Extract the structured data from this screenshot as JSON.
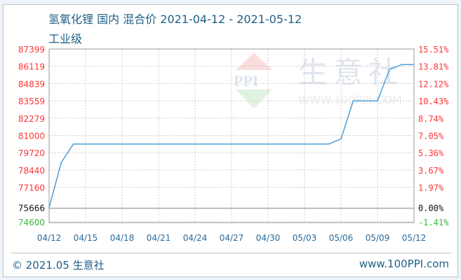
{
  "header": {
    "title": "氢氧化锂 国内 混合价 2021-04-12 - 2021-05-12",
    "subtitle": "工业级"
  },
  "footer": {
    "copyright": "© 2021.05 生意社",
    "site": "www.100PPI.com"
  },
  "watermark": {
    "logo": "PPI",
    "name": "生意社",
    "url": "WWW.100PPI.COM"
  },
  "colors": {
    "line": "#4a9fdc",
    "up": "#ff3333",
    "base": "#111111",
    "down": "#33bb33",
    "axis_x": "#2a6a9a",
    "grid": "#cccccc"
  },
  "chart_data": {
    "type": "line",
    "title": "氢氧化锂 国内 混合价 2021-04-12 - 2021-05-12",
    "subtitle": "工业级",
    "xlim": [
      "2021-04-12",
      "2021-05-12"
    ],
    "ylim": [
      74600,
      87399
    ],
    "grid": true,
    "x_ticks": [
      "04/12",
      "04/15",
      "04/18",
      "04/21",
      "04/24",
      "04/27",
      "04/30",
      "05/03",
      "05/06",
      "05/09",
      "05/12"
    ],
    "y_ticks_left": [
      "87399",
      "86119",
      "84839",
      "83559",
      "82279",
      "81000",
      "79720",
      "78440",
      "77160",
      "75666",
      "74600"
    ],
    "y_tick_values": [
      87399,
      86119,
      84839,
      83559,
      82279,
      81000,
      79720,
      78440,
      77160,
      75666,
      74600
    ],
    "y_ticks_right": [
      "15.51%",
      "13.81%",
      "12.12%",
      "10.43%",
      "8.74%",
      "7.05%",
      "5.36%",
      "3.67%",
      "1.97%",
      "0.00%",
      "-1.41%"
    ],
    "baseline": 75666,
    "x": [
      "04/12",
      "04/13",
      "04/14",
      "04/15",
      "04/16",
      "04/17",
      "04/18",
      "04/19",
      "04/20",
      "04/21",
      "04/22",
      "04/23",
      "04/24",
      "04/25",
      "04/26",
      "04/27",
      "04/28",
      "04/29",
      "04/30",
      "05/01",
      "05/02",
      "05/03",
      "05/04",
      "05/05",
      "05/06",
      "05/07",
      "05/08",
      "05/09",
      "05/10",
      "05/11",
      "05/12"
    ],
    "values": [
      75666,
      79000,
      80370,
      80370,
      80370,
      80370,
      80370,
      80370,
      80370,
      80370,
      80370,
      80370,
      80370,
      80370,
      80370,
      80370,
      80370,
      80370,
      80370,
      80370,
      80370,
      80370,
      80370,
      80370,
      80740,
      83559,
      83559,
      83559,
      85900,
      86250,
      86250
    ]
  }
}
